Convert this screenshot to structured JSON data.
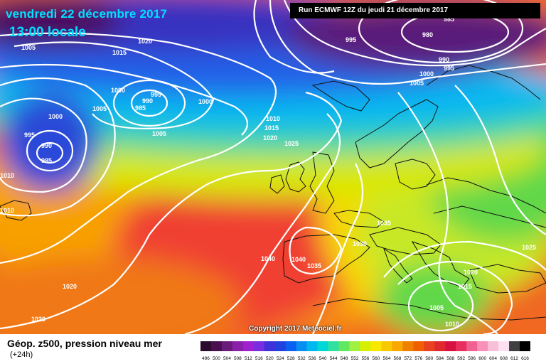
{
  "header": {
    "date": "vendredi 22 décembre 2017",
    "time": "13:00 locale",
    "run": "Run ECMWF 12Z du jeudi 21 décembre 2017"
  },
  "footer": {
    "copyright": "Copyright 2017 Meteociel.fr",
    "legend_title": "Géop. z500, pression niveau mer",
    "legend_sub": "(+24h)"
  },
  "isobar_labels": [
    "1005",
    "1015",
    "1020",
    "1000",
    "995",
    "990",
    "985",
    "1000",
    "1005",
    "995",
    "990",
    "985",
    "1000",
    "1005",
    "1010",
    "1015",
    "1020",
    "1025",
    "1010",
    "1010",
    "985",
    "980",
    "995",
    "990",
    "1000",
    "995",
    "1005",
    "1035",
    "1030",
    "1040",
    "1040",
    "1035",
    "1025",
    "1020",
    "1015",
    "1005",
    "1010",
    "1020",
    "1020"
  ],
  "color_scale": {
    "labels": [
      "496",
      "500",
      "504",
      "508",
      "512",
      "516",
      "520",
      "524",
      "528",
      "532",
      "536",
      "540",
      "544",
      "548",
      "552",
      "556",
      "560",
      "564",
      "568",
      "572",
      "576",
      "580",
      "584",
      "588",
      "592",
      "596",
      "600",
      "604",
      "608",
      "612",
      "616"
    ],
    "colors": [
      "#2b0a2e",
      "#4a0f4f",
      "#6a1a78",
      "#8a20a8",
      "#a020d0",
      "#7a2ce0",
      "#4030d8",
      "#2040e0",
      "#0a60f0",
      "#0890f0",
      "#00b8f0",
      "#00d8d8",
      "#30e0a0",
      "#60e860",
      "#a0f040",
      "#d8f000",
      "#f8e800",
      "#f8c800",
      "#f8a800",
      "#f08000",
      "#f06000",
      "#e84020",
      "#e02830",
      "#d81040",
      "#e83060",
      "#f06090",
      "#f890b8",
      "#f8c0d8",
      "#ffe0f0",
      "#404040",
      "#000000"
    ]
  }
}
